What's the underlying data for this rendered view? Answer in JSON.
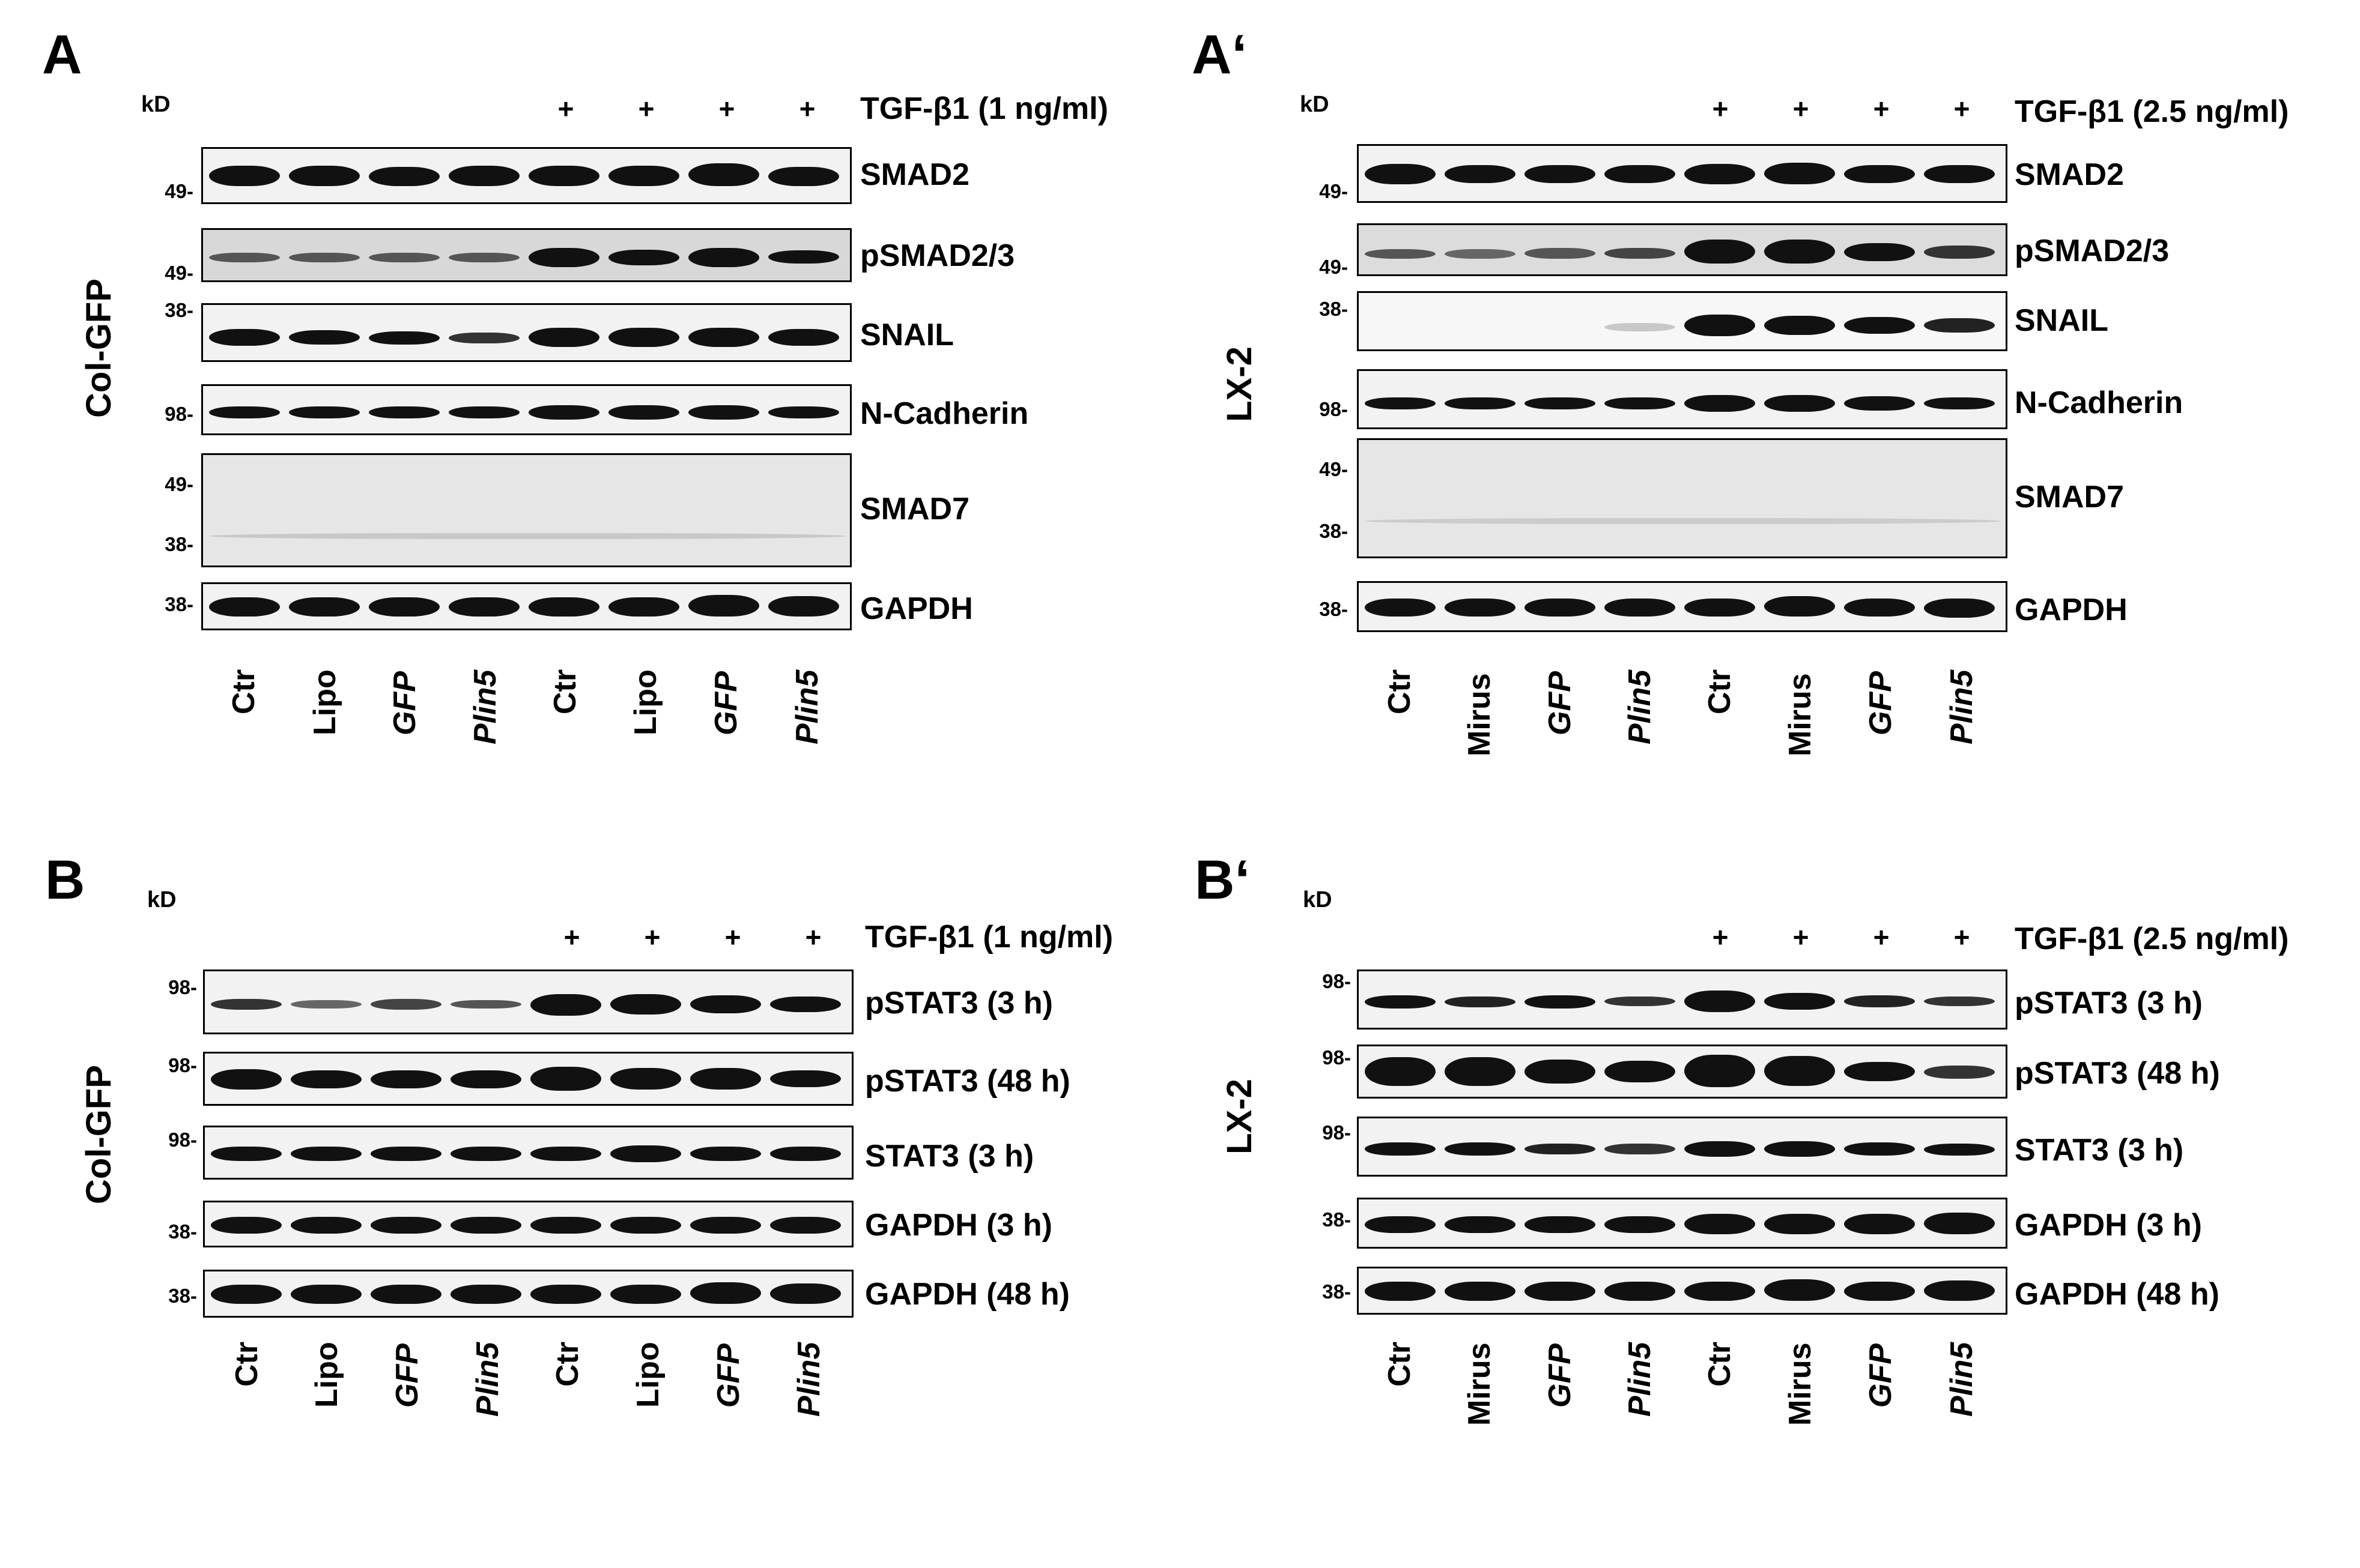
{
  "panels": [
    {
      "letter": "A",
      "kd": "kD",
      "treatment": "TGF-β1 (1 ng/ml)",
      "cell_line": "Col-GFP",
      "plus": [
        "+",
        "+",
        "+",
        "+"
      ],
      "lanes": [
        "Ctr",
        "Lipo",
        "GFP",
        "Plin5",
        "Ctr",
        "Lipo",
        "GFP",
        "Plin5"
      ],
      "blots": [
        {
          "label": "SMAD2",
          "markers": [
            "49-"
          ]
        },
        {
          "label": "pSMAD2/3",
          "markers": [
            "49-"
          ]
        },
        {
          "label": "SNAIL",
          "markers": [
            "38-"
          ]
        },
        {
          "label": "N-Cadherin",
          "markers": [
            "98-"
          ]
        },
        {
          "label": "SMAD7",
          "markers": [
            "49-",
            "38-"
          ]
        },
        {
          "label": "GAPDH",
          "markers": [
            "38-"
          ]
        }
      ]
    },
    {
      "letter": "A‘",
      "kd": "kD",
      "treatment": "TGF-β1 (2.5 ng/ml)",
      "cell_line": "LX-2",
      "plus": [
        "+",
        "+",
        "+",
        "+"
      ],
      "lanes": [
        "Ctr",
        "Mirus",
        "GFP",
        "Plin5",
        "Ctr",
        "Mirus",
        "GFP",
        "Plin5"
      ],
      "blots": [
        {
          "label": "SMAD2",
          "markers": [
            "49-"
          ]
        },
        {
          "label": "pSMAD2/3",
          "markers": [
            "49-"
          ]
        },
        {
          "label": "SNAIL",
          "markers": [
            "38-"
          ]
        },
        {
          "label": "N-Cadherin",
          "markers": [
            "98-"
          ]
        },
        {
          "label": "SMAD7",
          "markers": [
            "49-",
            "38-"
          ]
        },
        {
          "label": "GAPDH",
          "markers": [
            "38-"
          ]
        }
      ]
    },
    {
      "letter": "B",
      "kd": "kD",
      "treatment": "TGF-β1 (1 ng/ml)",
      "cell_line": "Col-GFP",
      "plus": [
        "+",
        "+",
        "+",
        "+"
      ],
      "lanes": [
        "Ctr",
        "Lipo",
        "GFP",
        "Plin5",
        "Ctr",
        "Lipo",
        "GFP",
        "Plin5"
      ],
      "blots": [
        {
          "label": "pSTAT3 (3 h)",
          "markers": [
            "98-"
          ]
        },
        {
          "label": "pSTAT3 (48 h)",
          "markers": [
            "98-"
          ]
        },
        {
          "label": "STAT3 (3 h)",
          "markers": [
            "98-"
          ]
        },
        {
          "label": "GAPDH (3 h)",
          "markers": [
            "38-"
          ]
        },
        {
          "label": "GAPDH (48 h)",
          "markers": [
            "38-"
          ]
        }
      ]
    },
    {
      "letter": "B‘",
      "kd": "kD",
      "treatment": "TGF-β1 (2.5 ng/ml)",
      "cell_line": "LX-2",
      "plus": [
        "+",
        "+",
        "+",
        "+"
      ],
      "lanes": [
        "Ctr",
        "Mirus",
        "GFP",
        "Plin5",
        "Ctr",
        "Mirus",
        "GFP",
        "Plin5"
      ],
      "blots": [
        {
          "label": "pSTAT3 (3 h)",
          "markers": [
            "98-"
          ]
        },
        {
          "label": "pSTAT3 (48 h)",
          "markers": [
            "98-"
          ]
        },
        {
          "label": "STAT3 (3 h)",
          "markers": [
            "98-"
          ]
        },
        {
          "label": "GAPDH (3 h)",
          "markers": [
            "38-"
          ]
        },
        {
          "label": "GAPDH (48 h)",
          "markers": [
            "38-"
          ]
        }
      ]
    }
  ]
}
